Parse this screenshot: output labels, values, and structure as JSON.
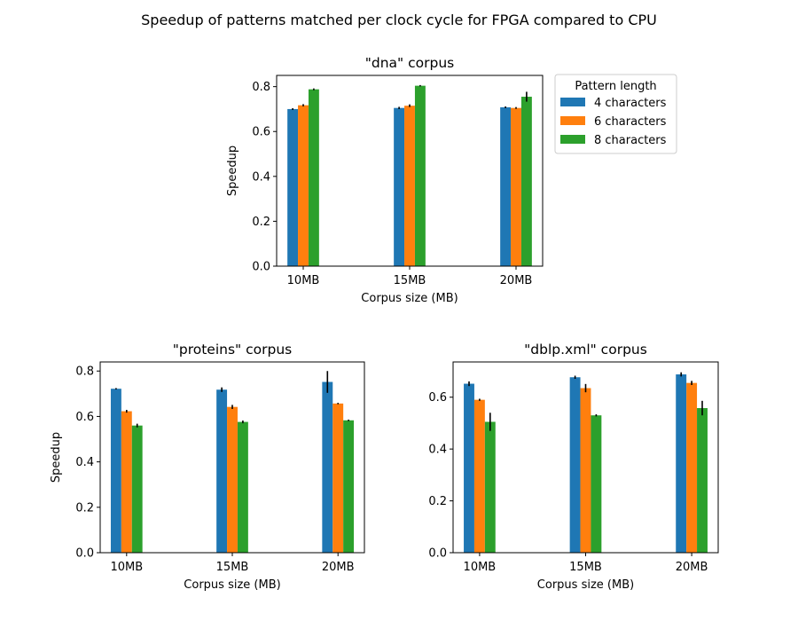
{
  "chart_data": {
    "type": "bar",
    "title": "Speedup of patterns matched per clock cycle for FPGA compared to CPU",
    "legend": {
      "title": "Pattern length",
      "placement": "right of top panel"
    },
    "series_names": [
      "4 characters",
      "6 characters",
      "8 characters"
    ],
    "colors": [
      "#1f77b4",
      "#ff7f0e",
      "#2ca02c"
    ],
    "panels": [
      {
        "title": "\"dna\" corpus",
        "xlabel": "Corpus size (MB)",
        "ylabel": "Speedup",
        "categories": [
          "10MB",
          "15MB",
          "20MB"
        ],
        "ylim": [
          0,
          0.85
        ],
        "yticks": [
          "0.0",
          "0.2",
          "0.4",
          "0.6",
          "0.8"
        ],
        "series": [
          {
            "name": "4 characters",
            "values": [
              0.7,
              0.705,
              0.708
            ],
            "errors": [
              0.004,
              0.005,
              0.004
            ]
          },
          {
            "name": "6 characters",
            "values": [
              0.717,
              0.715,
              0.705
            ],
            "errors": [
              0.005,
              0.006,
              0.004
            ]
          },
          {
            "name": "8 characters",
            "values": [
              0.788,
              0.804,
              0.755
            ],
            "errors": [
              0.004,
              0.003,
              0.022
            ]
          }
        ]
      },
      {
        "title": "\"proteins\" corpus",
        "xlabel": "Corpus size (MB)",
        "ylabel": "Speedup",
        "categories": [
          "10MB",
          "15MB",
          "20MB"
        ],
        "ylim": [
          0,
          0.84
        ],
        "yticks": [
          "0.0",
          "0.2",
          "0.4",
          "0.6",
          "0.8"
        ],
        "series": [
          {
            "name": "4 characters",
            "values": [
              0.722,
              0.718,
              0.752
            ],
            "errors": [
              0.003,
              0.01,
              0.048
            ]
          },
          {
            "name": "6 characters",
            "values": [
              0.623,
              0.642,
              0.657
            ],
            "errors": [
              0.006,
              0.009,
              0.003
            ]
          },
          {
            "name": "8 characters",
            "values": [
              0.56,
              0.576,
              0.583
            ],
            "errors": [
              0.008,
              0.006,
              0.003
            ]
          }
        ]
      },
      {
        "title": "\"dblp.xml\" corpus",
        "xlabel": "Corpus size (MB)",
        "ylabel": "",
        "categories": [
          "10MB",
          "15MB",
          "20MB"
        ],
        "ylim": [
          0,
          0.736
        ],
        "yticks": [
          "0.0",
          "0.2",
          "0.4",
          "0.6"
        ],
        "series": [
          {
            "name": "4 characters",
            "values": [
              0.652,
              0.677,
              0.688
            ],
            "errors": [
              0.009,
              0.006,
              0.008
            ]
          },
          {
            "name": "6 characters",
            "values": [
              0.59,
              0.635,
              0.655
            ],
            "errors": [
              0.004,
              0.016,
              0.008
            ]
          },
          {
            "name": "8 characters",
            "values": [
              0.505,
              0.53,
              0.558
            ],
            "errors": [
              0.035,
              0.004,
              0.028
            ]
          }
        ]
      }
    ]
  }
}
